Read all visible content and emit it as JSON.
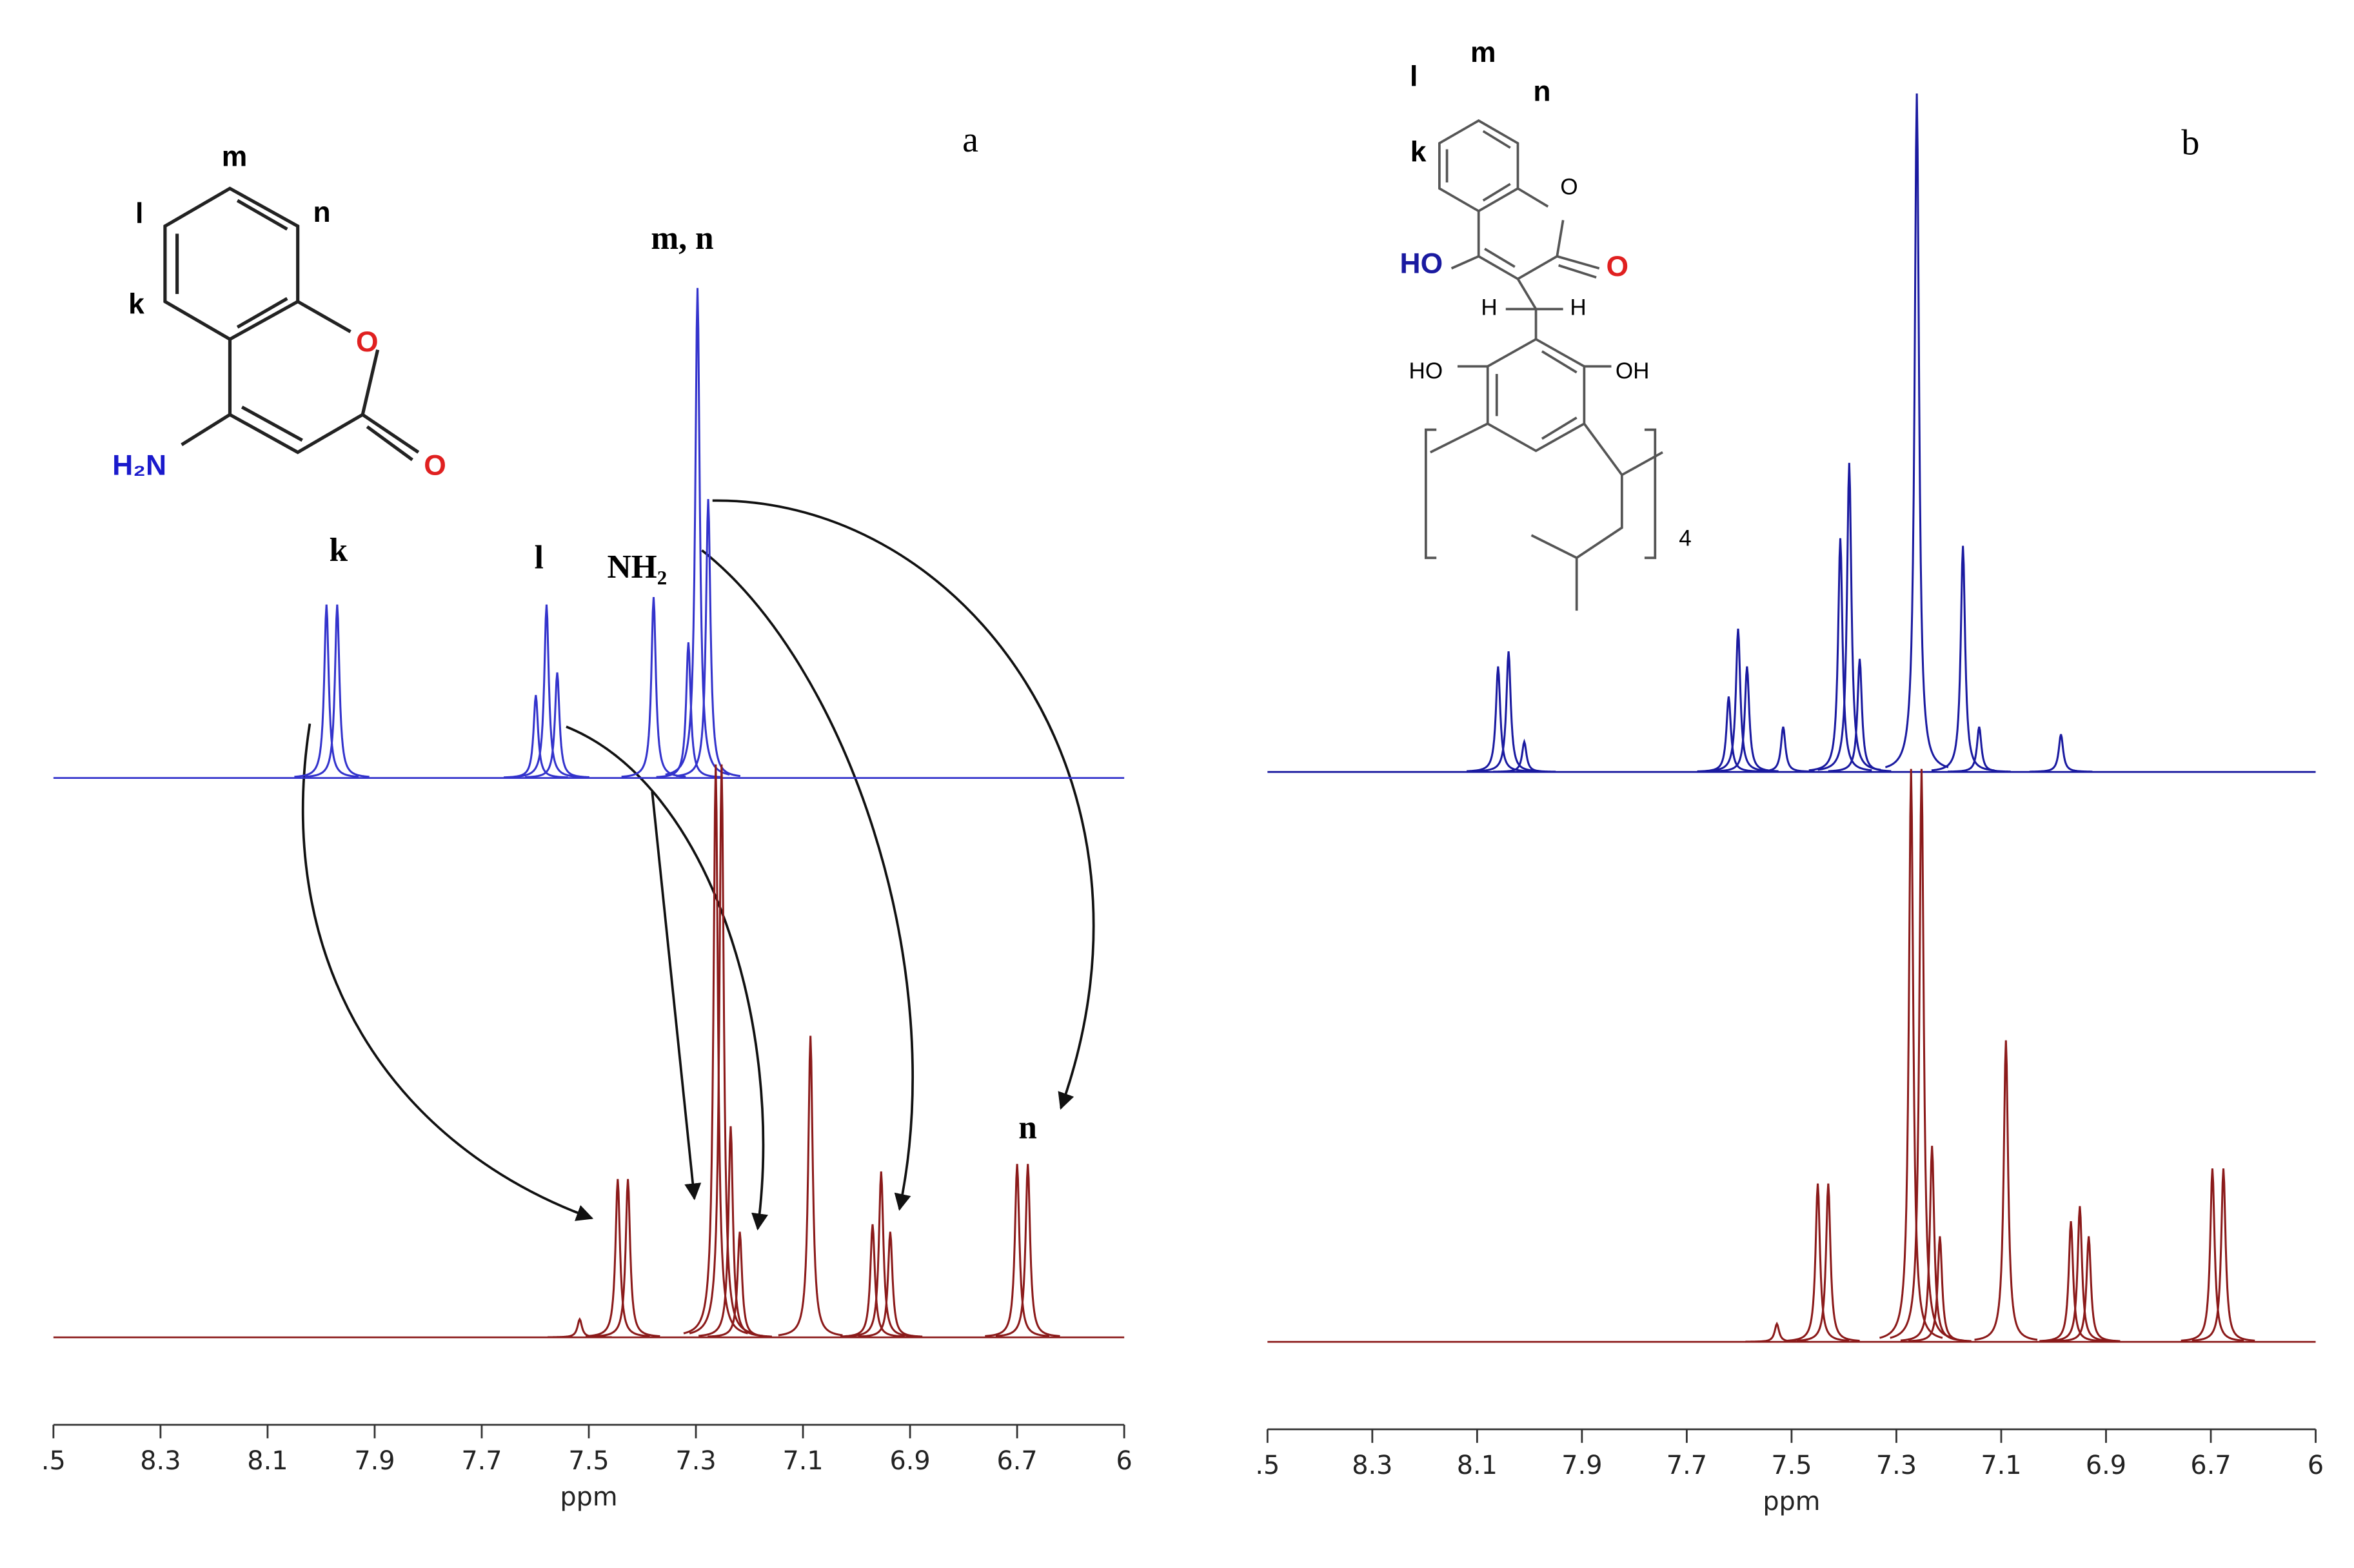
{
  "chart_data": [
    {
      "type": "spectrum",
      "label": "a",
      "xlabel": "ppm",
      "xlim": [
        8.5,
        6.5
      ],
      "xticks": [
        {
          "value": 8.5,
          "label": ".5"
        },
        8.3,
        8.1,
        7.9,
        7.7,
        7.5,
        7.3,
        7.1,
        6.9,
        6.7,
        {
          "value": 6.5,
          "label": "6"
        }
      ],
      "annotations": [
        "k",
        "l",
        "NH₂",
        "m, n",
        "n"
      ],
      "structure_labels": [
        "m",
        "n",
        "l",
        "k",
        "O",
        "O",
        "H₂N"
      ],
      "series": [
        {
          "color": "#3333cc",
          "x": [
            7.99,
            7.97,
            7.599,
            7.579,
            7.559,
            7.379,
            7.314,
            7.297,
            7.277
          ],
          "values": [
            115,
            115,
            55,
            115,
            70,
            120,
            90,
            325,
            185
          ]
        },
        {
          "color": "#8b1a1a",
          "x": [
            7.517,
            7.446,
            7.427,
            7.263,
            7.252,
            7.235,
            7.218,
            7.086,
            6.97,
            6.954,
            6.937,
            6.7,
            6.68
          ],
          "values": [
            12,
            105,
            105,
            380,
            380,
            140,
            70,
            200,
            75,
            110,
            70,
            115,
            115
          ]
        }
      ]
    },
    {
      "type": "spectrum",
      "label": "b",
      "xlabel": "ppm",
      "xlim": [
        8.5,
        6.5
      ],
      "xticks": [
        {
          "value": 8.5,
          "label": ".5"
        },
        8.3,
        8.1,
        7.9,
        7.7,
        7.5,
        7.3,
        7.1,
        6.9,
        6.7,
        {
          "value": 6.5,
          "label": "6"
        }
      ],
      "structure_labels": [
        "l",
        "m",
        "n",
        "k",
        "O",
        "O",
        "HO",
        "H",
        "H",
        "HO",
        "OH",
        "4"
      ],
      "series": [
        {
          "color": "#1a1aa0",
          "x": [
            8.06,
            8.04,
            8.01,
            7.62,
            7.602,
            7.585,
            7.516,
            7.407,
            7.39,
            7.37,
            7.261,
            7.173,
            7.142,
            6.986
          ],
          "values": [
            70,
            80,
            20,
            50,
            95,
            70,
            30,
            155,
            205,
            75,
            450,
            150,
            30,
            25
          ]
        },
        {
          "color": "#8b1a1a",
          "x": [
            7.528,
            7.45,
            7.43,
            7.272,
            7.252,
            7.232,
            7.217,
            7.091,
            6.967,
            6.95,
            6.933,
            6.697,
            6.676
          ],
          "values": [
            12,
            105,
            105,
            380,
            380,
            130,
            70,
            200,
            80,
            90,
            70,
            115,
            115
          ]
        }
      ]
    }
  ]
}
